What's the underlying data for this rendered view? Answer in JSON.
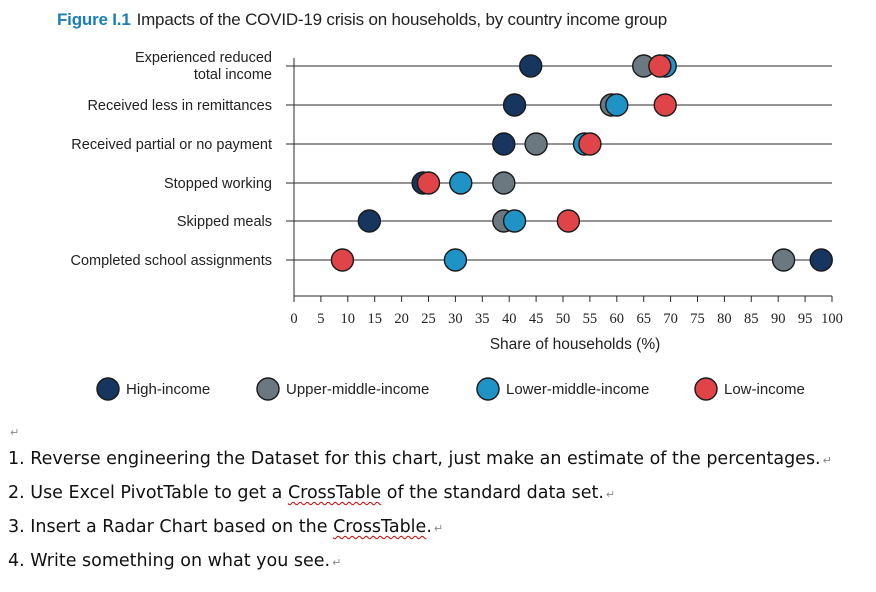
{
  "figure": {
    "label": "Figure I.1",
    "title": "Impacts of the COVID-19 crisis on households, by country income group"
  },
  "chart_data": {
    "type": "scatter",
    "orientation": "dot-plot",
    "categories": [
      "Experienced reduced total income",
      "Received less in remittances",
      "Received partial or no payment",
      "Stopped working",
      "Skipped meals",
      "Completed school assignments"
    ],
    "category_display": [
      [
        "Experienced reduced",
        "total income"
      ],
      [
        "Received less in remittances"
      ],
      [
        "Received partial or no payment"
      ],
      [
        "Stopped working"
      ],
      [
        "Skipped meals"
      ],
      [
        "Completed school assignments"
      ]
    ],
    "xlabel": "Share of households (%)",
    "xlim": [
      0,
      100
    ],
    "xticks": [
      0,
      5,
      10,
      15,
      20,
      25,
      30,
      35,
      40,
      45,
      50,
      55,
      60,
      65,
      70,
      75,
      80,
      85,
      90,
      95,
      100
    ],
    "legend_position": "bottom",
    "series": [
      {
        "name": "High-income",
        "color": "#16365f",
        "values": [
          44,
          41,
          39,
          24,
          14,
          98
        ]
      },
      {
        "name": "Upper-middle-income",
        "color": "#6b7880",
        "values": [
          65,
          59,
          45,
          39,
          39,
          91
        ]
      },
      {
        "name": "Lower-middle-income",
        "color": "#1f93c6",
        "values": [
          69,
          60,
          54,
          31,
          41,
          30
        ]
      },
      {
        "name": "Low-income",
        "color": "#e04448",
        "values": [
          68,
          69,
          55,
          25,
          51,
          9
        ]
      }
    ]
  },
  "instructions": [
    "1. Reverse engineering the Dataset for this chart, just make an estimate of the percentages.",
    "2. Use Excel PivotTable to get a CrossTable of the standard data set.",
    "3. Insert a Radar Chart based on the CrossTable.",
    "4. Write something on what you see."
  ],
  "pilcrow": "↵"
}
